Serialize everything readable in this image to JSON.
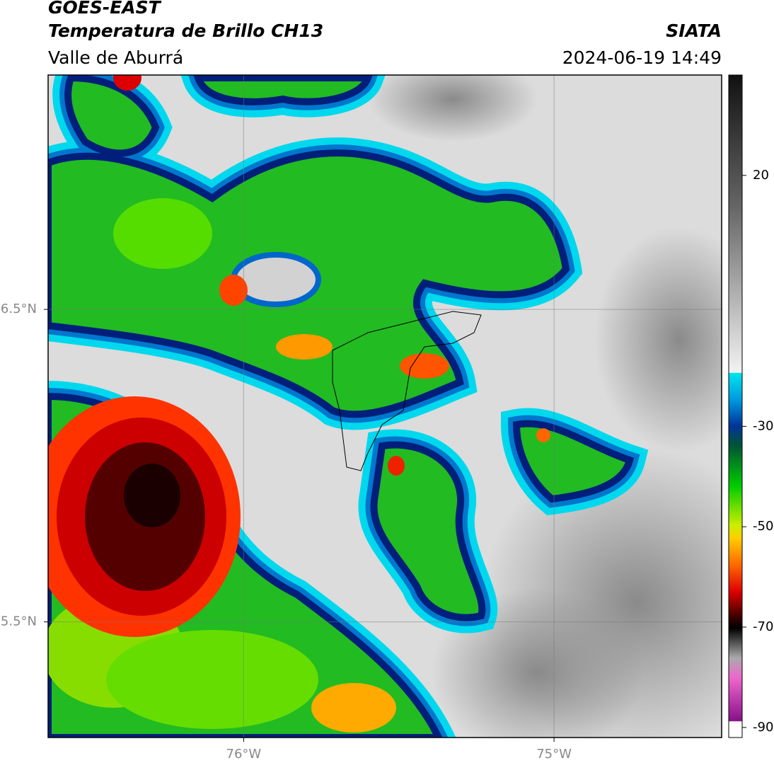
{
  "header": {
    "satellite": "GOES-EAST",
    "product": "Temperatura de Brillo CH13",
    "region": "Valle de Aburrá",
    "source": "SIATA",
    "timestamp": "2024-06-19 14:49"
  },
  "map": {
    "xlim": [
      -76.63,
      -74.46
    ],
    "ylim": [
      5.13,
      7.25
    ],
    "xticks": [
      {
        "value": -76,
        "label": "76°W"
      },
      {
        "value": -75,
        "label": "75°W"
      }
    ],
    "yticks": [
      {
        "value": 6.5,
        "label": "6.5°N"
      },
      {
        "value": 5.5,
        "label": "5.5°N"
      }
    ],
    "grid": true
  },
  "colorbar": {
    "lim": [
      -92,
      40
    ],
    "ticks": [
      20,
      -30,
      -50,
      -70,
      -90
    ]
  }
}
